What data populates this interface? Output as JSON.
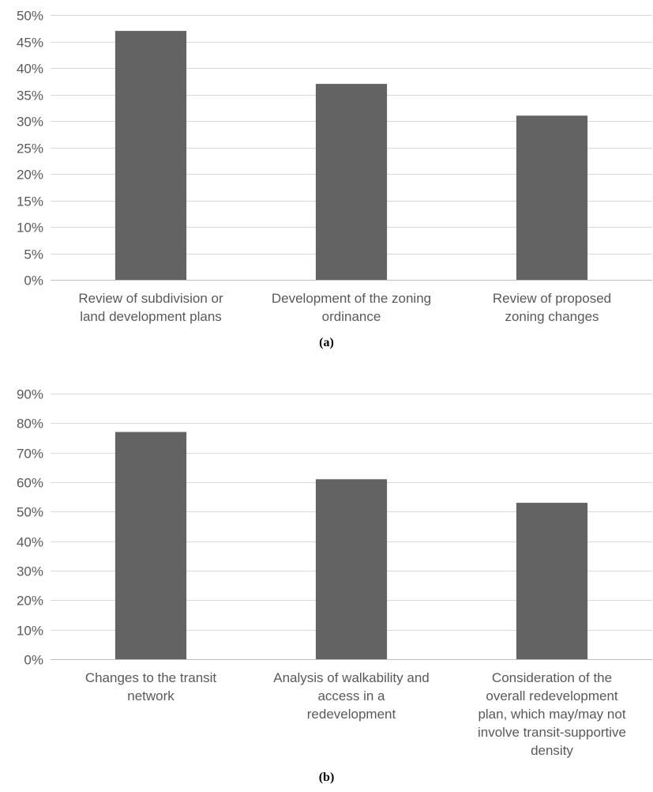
{
  "chart_data": [
    {
      "type": "bar",
      "panel_label": "(a)",
      "title": "",
      "xlabel": "",
      "ylabel": "",
      "ylim": [
        0,
        50
      ],
      "ytick_step": 5,
      "y_format": "percent",
      "grid": true,
      "bar_color": "#636363",
      "categories": [
        [
          "Review of subdivision or",
          "land development plans"
        ],
        [
          "Development of the zoning",
          "ordinance"
        ],
        [
          "Review of proposed",
          "zoning changes"
        ]
      ],
      "values": [
        47,
        37,
        31
      ]
    },
    {
      "type": "bar",
      "panel_label": "(b)",
      "title": "",
      "xlabel": "",
      "ylabel": "",
      "ylim": [
        0,
        90
      ],
      "ytick_step": 10,
      "y_format": "percent",
      "grid": true,
      "bar_color": "#636363",
      "categories": [
        [
          "Changes to the transit",
          "network"
        ],
        [
          "Analysis of walkability and",
          "access in a",
          "redevelopment"
        ],
        [
          "Consideration of the",
          "overall redevelopment",
          "plan, which may/may not",
          "involve transit-supportive",
          "density"
        ]
      ],
      "values": [
        77,
        61,
        53
      ]
    }
  ]
}
